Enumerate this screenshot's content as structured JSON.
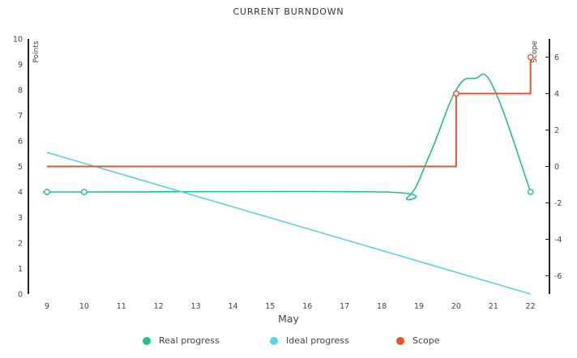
{
  "chart_data": {
    "type": "line",
    "title": "CURRENT BURNDOWN",
    "xlabel": "May",
    "ylabel": "Points",
    "y2label": "Scope",
    "categories": [
      "9",
      "10",
      "11",
      "12",
      "13",
      "14",
      "15",
      "16",
      "17",
      "18",
      "19",
      "20",
      "21",
      "22"
    ],
    "ylim": [
      0,
      10
    ],
    "y2lim": [
      -7,
      7
    ],
    "yticks": [
      0,
      1,
      2,
      3,
      4,
      5,
      6,
      7,
      8,
      9,
      10
    ],
    "y2ticks": [
      -6,
      -4,
      -2,
      0,
      2,
      4,
      6
    ],
    "series": [
      {
        "name": "Real progress",
        "color": "#1ec28b",
        "axis": "left",
        "points": [
          [
            9,
            4
          ],
          [
            10,
            4
          ],
          [
            18,
            4
          ],
          [
            18.7,
            3.8
          ],
          [
            19.3,
            5.5
          ],
          [
            20,
            8.0
          ],
          [
            20.5,
            8.45
          ],
          [
            21,
            8.1
          ],
          [
            22,
            4
          ]
        ],
        "markers": [
          [
            9,
            4
          ],
          [
            10,
            4
          ],
          [
            22,
            4
          ]
        ]
      },
      {
        "name": "Ideal progress",
        "color": "#5bd3ea",
        "axis": "left",
        "points": [
          [
            9,
            5.55
          ],
          [
            22,
            0
          ]
        ],
        "markers": []
      },
      {
        "name": "Scope",
        "color": "#e8542a",
        "axis": "right",
        "step": true,
        "points": [
          [
            9,
            0
          ],
          [
            20,
            0
          ],
          [
            20,
            4
          ],
          [
            22,
            4
          ],
          [
            22,
            6
          ]
        ],
        "markers": [
          [
            20,
            4
          ],
          [
            22,
            6
          ]
        ]
      }
    ],
    "legend": "bottom",
    "grid": false
  }
}
